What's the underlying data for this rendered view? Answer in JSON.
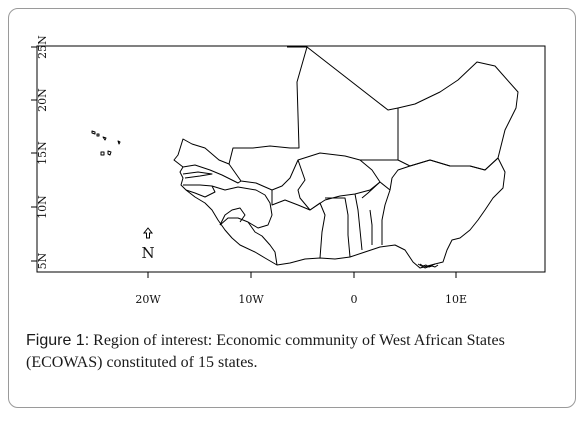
{
  "map": {
    "lat_ticks": [
      "5N",
      "10N",
      "15N",
      "20N",
      "25N"
    ],
    "lon_ticks": [
      "20W",
      "10W",
      "0",
      "10E"
    ],
    "north_arrow": {
      "icon": "north-arrow-icon",
      "label": "N"
    },
    "colors": {
      "border": "#000000",
      "background": "#ffffff"
    }
  },
  "caption": {
    "lead": "Figure 1:",
    "text": " Region of interest: Economic community of West African States (ECOWAS) constituted of 15 states."
  }
}
